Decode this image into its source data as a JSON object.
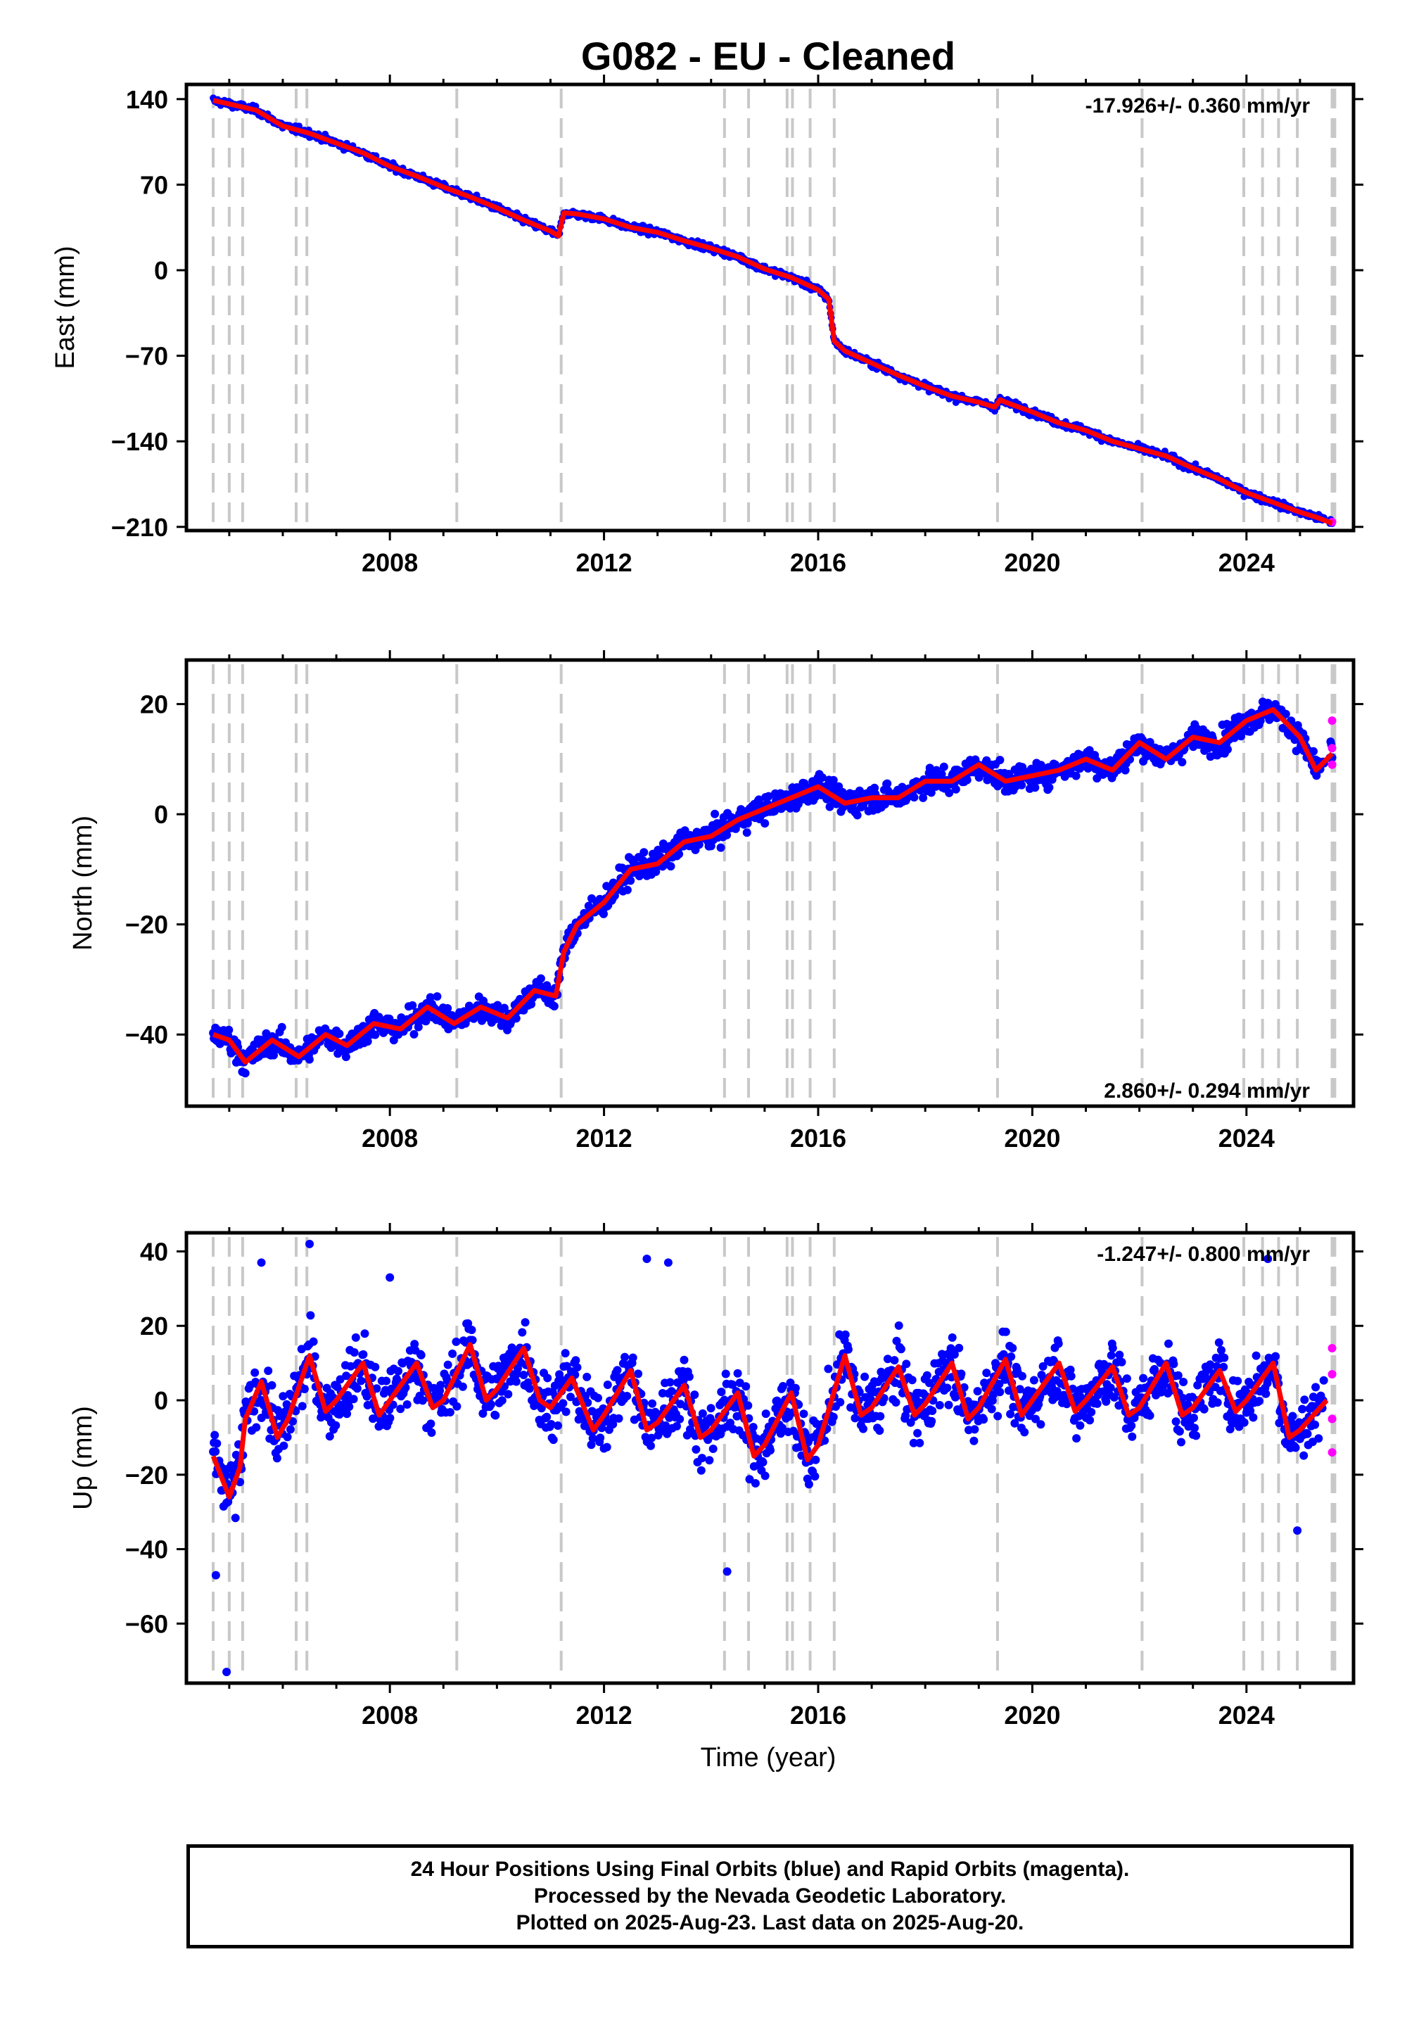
{
  "title": "G082  - EU - Cleaned",
  "colors": {
    "final": "#0000ff",
    "rapid": "#ff00ff",
    "trend": "#ff0000",
    "event_line": "#c8c8c8"
  },
  "x_axis_label": "Time (year)",
  "footer": {
    "line1": "24 Hour Positions Using Final Orbits (blue) and Rapid Orbits (magenta).",
    "line2": "Processed by the Nevada Geodetic Laboratory.",
    "line3": "Plotted on 2025-Aug-23. Last data on 2025-Aug-20."
  },
  "chart_data": [
    {
      "type": "scatter",
      "ylabel": "East (mm)",
      "rate_text": "-17.926+/- 0.360 mm/yr",
      "xlim": [
        2004.2,
        2026.0
      ],
      "ylim": [
        -213,
        152
      ],
      "xticks": [
        2008,
        2012,
        2016,
        2020,
        2024
      ],
      "yticks": [
        140,
        70,
        0,
        -70,
        -140,
        -210
      ],
      "grid": false,
      "series": [
        {
          "x": [
            2004.7,
            2005.0,
            2005.5,
            2006.0,
            2006.5,
            2007.0,
            2007.5,
            2008.0,
            2008.5,
            2009.0,
            2009.5,
            2010.0,
            2010.5,
            2011.0,
            2011.15,
            2011.25,
            2011.5,
            2012.0,
            2012.5,
            2013.0,
            2013.5,
            2014.0,
            2014.5,
            2015.0,
            2015.5,
            2016.0,
            2016.2,
            2016.3,
            2016.5,
            2017.0,
            2017.5,
            2018.0,
            2018.5,
            2019.0,
            2019.3,
            2019.4,
            2019.5,
            2020.0,
            2020.5,
            2021.0,
            2021.5,
            2022.0,
            2022.5,
            2023.0,
            2023.5,
            2024.0,
            2024.5,
            2025.0,
            2025.3,
            2025.6
          ],
          "y": [
            139,
            136,
            131,
            118,
            112,
            104,
            96,
            85,
            77,
            68,
            60,
            51,
            41,
            32,
            28,
            47,
            46,
            42,
            35,
            31,
            24,
            18,
            11,
            1,
            -6,
            -16,
            -24,
            -58,
            -66,
            -76,
            -86,
            -95,
            -103,
            -108,
            -112,
            -106,
            -108,
            -116,
            -125,
            -131,
            -140,
            -146,
            -152,
            -162,
            -171,
            -182,
            -190,
            -198,
            -202,
            -207
          ]
        },
        {
          "x": [
            2025.6
          ],
          "y": [
            -206
          ]
        }
      ]
    },
    {
      "type": "scatter",
      "ylabel": "North (mm)",
      "rate_text": "2.860+/- 0.294 mm/yr",
      "xlim": [
        2004.2,
        2026.0
      ],
      "ylim": [
        -53,
        28
      ],
      "xticks": [
        2008,
        2012,
        2016,
        2020,
        2024
      ],
      "yticks": [
        20,
        0,
        -20,
        -40
      ],
      "grid": false,
      "series": [
        {
          "x": [
            2004.7,
            2005.0,
            2005.3,
            2005.8,
            2006.3,
            2006.8,
            2007.2,
            2007.7,
            2008.2,
            2008.7,
            2009.2,
            2009.7,
            2010.2,
            2010.7,
            2011.1,
            2011.25,
            2011.5,
            2012.0,
            2012.5,
            2013.0,
            2013.5,
            2014.0,
            2014.5,
            2015.0,
            2015.5,
            2016.0,
            2016.5,
            2017.0,
            2017.5,
            2018.0,
            2018.5,
            2019.0,
            2019.5,
            2020.0,
            2020.5,
            2021.0,
            2021.5,
            2022.0,
            2022.5,
            2023.0,
            2023.5,
            2024.0,
            2024.5,
            2025.0,
            2025.3,
            2025.6
          ],
          "y": [
            -40,
            -41,
            -45,
            -41,
            -44,
            -40,
            -42,
            -38,
            -39,
            -35,
            -38,
            -35,
            -37,
            -32,
            -33,
            -25,
            -20,
            -16,
            -10,
            -9,
            -5,
            -4,
            -1,
            1,
            3,
            5,
            2,
            3,
            3,
            6,
            6,
            9,
            6,
            7,
            8,
            10,
            8,
            13,
            10,
            14,
            13,
            17,
            19,
            14,
            8,
            11
          ]
        },
        {
          "x": [
            2025.6,
            2025.6,
            2025.6
          ],
          "y": [
            17,
            9,
            12
          ]
        }
      ]
    },
    {
      "type": "scatter",
      "ylabel": "Up (mm)",
      "rate_text": "-1.247+/- 0.800 mm/yr",
      "xlim": [
        2004.2,
        2026.0
      ],
      "ylim": [
        -76,
        45
      ],
      "xticks": [
        2008,
        2012,
        2016,
        2020,
        2024
      ],
      "yticks": [
        40,
        20,
        0,
        -20,
        -40,
        -60
      ],
      "grid": false,
      "series": [
        {
          "x": [
            2004.7,
            2005.0,
            2005.2,
            2005.3,
            2005.6,
            2005.9,
            2006.1,
            2006.5,
            2006.8,
            2007.0,
            2007.5,
            2007.8,
            2008.0,
            2008.5,
            2008.8,
            2009.0,
            2009.5,
            2009.8,
            2010.0,
            2010.5,
            2010.8,
            2011.0,
            2011.4,
            2011.8,
            2012.0,
            2012.5,
            2012.8,
            2013.0,
            2013.5,
            2013.8,
            2014.0,
            2014.5,
            2014.8,
            2015.0,
            2015.5,
            2015.8,
            2016.0,
            2016.5,
            2016.8,
            2017.0,
            2017.5,
            2017.8,
            2018.0,
            2018.5,
            2018.8,
            2019.0,
            2019.5,
            2019.8,
            2020.0,
            2020.5,
            2020.8,
            2021.0,
            2021.5,
            2021.8,
            2022.0,
            2022.5,
            2022.8,
            2023.0,
            2023.5,
            2023.8,
            2024.0,
            2024.5,
            2024.8,
            2025.0,
            2025.5
          ],
          "y": [
            -15,
            -26,
            -18,
            -5,
            5,
            -10,
            -5,
            12,
            -3,
            0,
            10,
            -4,
            0,
            10,
            -2,
            0,
            15,
            0,
            3,
            14,
            0,
            -2,
            6,
            -8,
            -4,
            8,
            -8,
            -6,
            4,
            -10,
            -8,
            2,
            -15,
            -12,
            2,
            -16,
            -12,
            12,
            -4,
            -2,
            9,
            -4,
            -1,
            10,
            -5,
            -2,
            11,
            -4,
            0,
            10,
            -3,
            0,
            9,
            -4,
            -2,
            10,
            -4,
            -2,
            8,
            -3,
            0,
            10,
            -10,
            -8,
            0
          ]
        },
        {
          "x": [
            2025.6,
            2025.6,
            2025.6,
            2025.6
          ],
          "y": [
            14,
            7,
            -5,
            -14
          ]
        }
      ]
    }
  ]
}
